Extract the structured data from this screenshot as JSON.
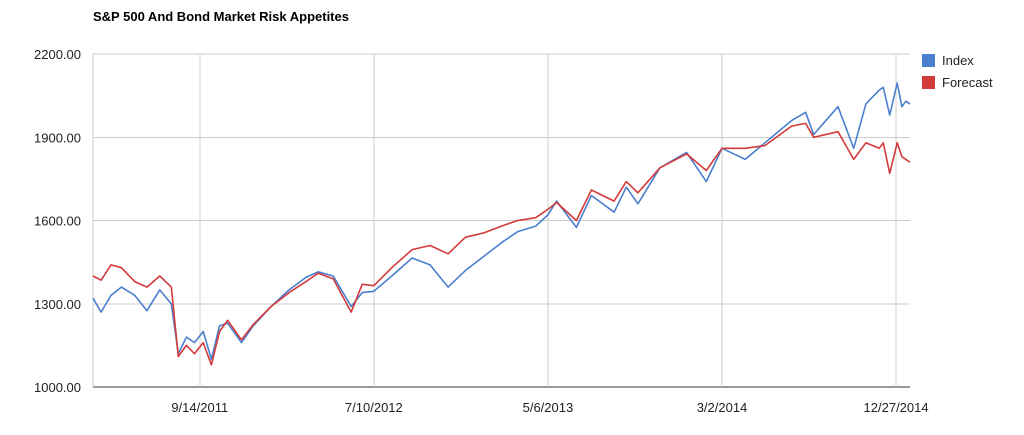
{
  "chart_data": {
    "type": "line",
    "title": "S&P 500 And Bond Market Risk Appetites",
    "xlabel": "",
    "ylabel": "",
    "ylim": [
      1000,
      2200
    ],
    "xlim": [
      "2011-03-14",
      "2015-01-20"
    ],
    "y_ticks": [
      "1000.00",
      "1300.00",
      "1600.00",
      "1900.00",
      "2200.00"
    ],
    "x_ticks": [
      {
        "date": "2011-09-14",
        "label": "9/14/2011"
      },
      {
        "date": "2012-07-10",
        "label": "7/10/2012"
      },
      {
        "date": "2013-05-06",
        "label": "5/6/2013"
      },
      {
        "date": "2014-03-02",
        "label": "3/2/2014"
      },
      {
        "date": "2014-12-27",
        "label": "12/27/2014"
      }
    ],
    "grid": true,
    "legend_position": "right",
    "series": [
      {
        "name": "Index",
        "color": "#4a7fcf",
        "points": [
          [
            "2011-03-14",
            1320
          ],
          [
            "2011-03-28",
            1270
          ],
          [
            "2011-04-14",
            1330
          ],
          [
            "2011-05-02",
            1360
          ],
          [
            "2011-05-25",
            1330
          ],
          [
            "2011-06-15",
            1275
          ],
          [
            "2011-07-07",
            1350
          ],
          [
            "2011-07-27",
            1300
          ],
          [
            "2011-08-08",
            1120
          ],
          [
            "2011-08-22",
            1180
          ],
          [
            "2011-09-05",
            1160
          ],
          [
            "2011-09-20",
            1200
          ],
          [
            "2011-10-04",
            1100
          ],
          [
            "2011-10-18",
            1220
          ],
          [
            "2011-11-01",
            1230
          ],
          [
            "2011-11-25",
            1160
          ],
          [
            "2011-12-15",
            1220
          ],
          [
            "2012-01-15",
            1290
          ],
          [
            "2012-02-15",
            1350
          ],
          [
            "2012-03-15",
            1395
          ],
          [
            "2012-04-05",
            1415
          ],
          [
            "2012-05-01",
            1400
          ],
          [
            "2012-06-01",
            1290
          ],
          [
            "2012-06-20",
            1340
          ],
          [
            "2012-07-10",
            1345
          ],
          [
            "2012-08-10",
            1400
          ],
          [
            "2012-09-14",
            1465
          ],
          [
            "2012-10-15",
            1440
          ],
          [
            "2012-11-15",
            1360
          ],
          [
            "2012-12-15",
            1420
          ],
          [
            "2013-01-15",
            1470
          ],
          [
            "2013-02-15",
            1520
          ],
          [
            "2013-03-15",
            1560
          ],
          [
            "2013-04-15",
            1580
          ],
          [
            "2013-05-06",
            1620
          ],
          [
            "2013-05-21",
            1670
          ],
          [
            "2013-06-24",
            1575
          ],
          [
            "2013-07-20",
            1690
          ],
          [
            "2013-08-28",
            1630
          ],
          [
            "2013-09-18",
            1720
          ],
          [
            "2013-10-08",
            1660
          ],
          [
            "2013-11-15",
            1790
          ],
          [
            "2013-12-31",
            1845
          ],
          [
            "2014-02-03",
            1740
          ],
          [
            "2014-03-02",
            1860
          ],
          [
            "2014-04-11",
            1820
          ],
          [
            "2014-05-15",
            1880
          ],
          [
            "2014-06-30",
            1960
          ],
          [
            "2014-07-24",
            1990
          ],
          [
            "2014-08-07",
            1910
          ],
          [
            "2014-09-18",
            2010
          ],
          [
            "2014-10-15",
            1860
          ],
          [
            "2014-11-05",
            2020
          ],
          [
            "2014-11-28",
            2070
          ],
          [
            "2014-12-05",
            2080
          ],
          [
            "2014-12-16",
            1980
          ],
          [
            "2014-12-29",
            2095
          ],
          [
            "2015-01-06",
            2010
          ],
          [
            "2015-01-13",
            2030
          ],
          [
            "2015-01-20",
            2020
          ]
        ]
      },
      {
        "name": "Forecast",
        "color": "#d33a3a",
        "points": [
          [
            "2011-03-14",
            1400
          ],
          [
            "2011-03-28",
            1385
          ],
          [
            "2011-04-14",
            1440
          ],
          [
            "2011-05-02",
            1430
          ],
          [
            "2011-05-25",
            1380
          ],
          [
            "2011-06-15",
            1360
          ],
          [
            "2011-07-07",
            1400
          ],
          [
            "2011-07-27",
            1360
          ],
          [
            "2011-08-08",
            1110
          ],
          [
            "2011-08-22",
            1150
          ],
          [
            "2011-09-05",
            1120
          ],
          [
            "2011-09-20",
            1160
          ],
          [
            "2011-10-04",
            1080
          ],
          [
            "2011-10-18",
            1200
          ],
          [
            "2011-11-01",
            1240
          ],
          [
            "2011-11-25",
            1170
          ],
          [
            "2011-12-15",
            1225
          ],
          [
            "2012-01-15",
            1290
          ],
          [
            "2012-02-15",
            1340
          ],
          [
            "2012-03-15",
            1380
          ],
          [
            "2012-04-05",
            1410
          ],
          [
            "2012-05-01",
            1390
          ],
          [
            "2012-06-01",
            1270
          ],
          [
            "2012-06-20",
            1370
          ],
          [
            "2012-07-10",
            1365
          ],
          [
            "2012-08-10",
            1430
          ],
          [
            "2012-09-14",
            1495
          ],
          [
            "2012-10-15",
            1510
          ],
          [
            "2012-11-15",
            1480
          ],
          [
            "2012-12-15",
            1540
          ],
          [
            "2013-01-15",
            1555
          ],
          [
            "2013-02-15",
            1580
          ],
          [
            "2013-03-15",
            1600
          ],
          [
            "2013-04-15",
            1610
          ],
          [
            "2013-05-06",
            1640
          ],
          [
            "2013-05-21",
            1665
          ],
          [
            "2013-06-24",
            1600
          ],
          [
            "2013-07-20",
            1710
          ],
          [
            "2013-08-28",
            1670
          ],
          [
            "2013-09-18",
            1740
          ],
          [
            "2013-10-08",
            1700
          ],
          [
            "2013-11-15",
            1790
          ],
          [
            "2013-12-31",
            1840
          ],
          [
            "2014-02-03",
            1780
          ],
          [
            "2014-03-02",
            1860
          ],
          [
            "2014-04-11",
            1860
          ],
          [
            "2014-05-15",
            1870
          ],
          [
            "2014-06-30",
            1940
          ],
          [
            "2014-07-24",
            1950
          ],
          [
            "2014-08-07",
            1900
          ],
          [
            "2014-09-18",
            1920
          ],
          [
            "2014-10-15",
            1820
          ],
          [
            "2014-11-05",
            1880
          ],
          [
            "2014-11-28",
            1860
          ],
          [
            "2014-12-05",
            1880
          ],
          [
            "2014-12-16",
            1770
          ],
          [
            "2014-12-29",
            1880
          ],
          [
            "2015-01-06",
            1830
          ],
          [
            "2015-01-13",
            1820
          ],
          [
            "2015-01-20",
            1810
          ]
        ]
      }
    ]
  }
}
